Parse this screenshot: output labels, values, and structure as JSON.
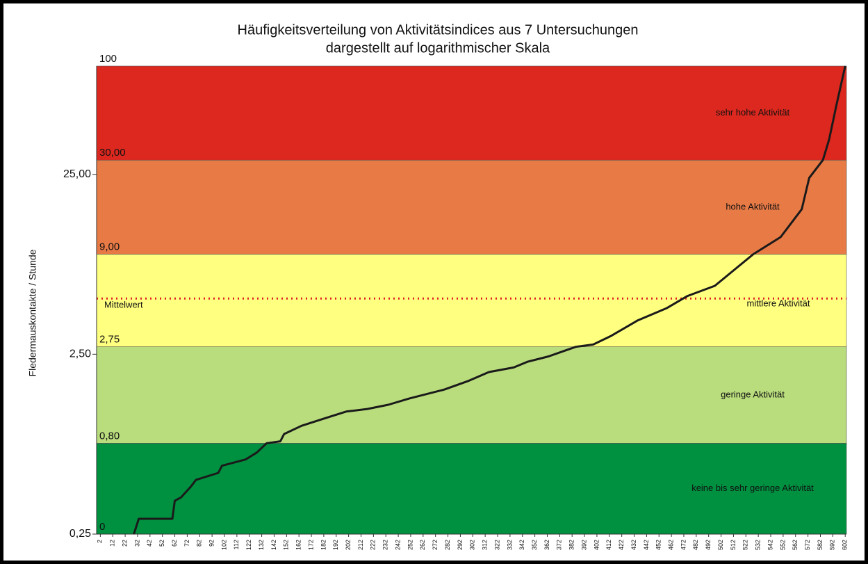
{
  "chart_data": {
    "type": "line",
    "title": "Häufigkeitsverteilung von Aktivitätsindices aus 7 Untersuchungen",
    "subtitle": "dargestellt auf logarithmischer Skala",
    "y_label": "Fledermauskontakte / Stunde",
    "log_y": true,
    "ylim": [
      0.25,
      100
    ],
    "yticks": [
      {
        "value": 0.25,
        "label": "0,25"
      },
      {
        "value": 2.5,
        "label": "2,50"
      },
      {
        "value": 25,
        "label": "25,00"
      }
    ],
    "xlim": [
      -1,
      603
    ],
    "xticks": [
      2,
      12,
      22,
      32,
      42,
      52,
      62,
      72,
      82,
      92,
      102,
      112,
      122,
      132,
      142,
      152,
      162,
      172,
      182,
      192,
      202,
      212,
      222,
      232,
      242,
      252,
      262,
      272,
      282,
      292,
      302,
      312,
      322,
      332,
      342,
      352,
      362,
      372,
      382,
      392,
      402,
      412,
      422,
      432,
      442,
      452,
      462,
      472,
      482,
      492,
      502,
      512,
      522,
      532,
      542,
      552,
      562,
      572,
      582,
      592,
      602
    ],
    "bands": [
      {
        "from": 0.25,
        "to": 0.8,
        "name": "keine bis sehr geringe Aktivität",
        "color": "#009140"
      },
      {
        "from": 0.8,
        "to": 2.75,
        "name": "geringe Aktivität",
        "color": "#b9dc7d"
      },
      {
        "from": 2.75,
        "to": 9,
        "name": "mittlere  Aktivität",
        "color": "#ffff80"
      },
      {
        "from": 9,
        "to": 30,
        "name": "hohe  Aktivität",
        "color": "#e87a46"
      },
      {
        "from": 30,
        "to": 100,
        "name": "sehr hohe  Aktivität",
        "color": "#dc281e"
      }
    ],
    "band_labels": [
      {
        "value": 0.25,
        "label": "0"
      },
      {
        "value": 0.8,
        "label": "0,80"
      },
      {
        "value": 2.75,
        "label": "2,75"
      },
      {
        "value": 9,
        "label": "9,00"
      },
      {
        "value": 30,
        "label": "30,00"
      },
      {
        "value": 100,
        "label": "100"
      }
    ],
    "mean": {
      "label": "Mittelwert",
      "value": 5.1,
      "color": "#e02020"
    },
    "series": [
      {
        "color": "#1a1a1a",
        "x": [
          29,
          33,
          60,
          62,
          67,
          75,
          79,
          97,
          100,
          119,
          128,
          136,
          147,
          150,
          164,
          181,
          200,
          217,
          234,
          251,
          279,
          298,
          315,
          335,
          346,
          363,
          385,
          399,
          413,
          435,
          458,
          475,
          497,
          514,
          528,
          550,
          567,
          573,
          584,
          589,
          595,
          602
        ],
        "values": [
          0.25,
          0.304,
          0.304,
          0.383,
          0.4,
          0.46,
          0.5,
          0.547,
          0.6,
          0.65,
          0.71,
          0.8,
          0.82,
          0.9,
          1.0,
          1.09,
          1.2,
          1.24,
          1.31,
          1.42,
          1.59,
          1.77,
          1.99,
          2.11,
          2.27,
          2.43,
          2.75,
          2.83,
          3.15,
          3.86,
          4.5,
          5.27,
          6.0,
          7.5,
          9.0,
          11.2,
          16,
          23.9,
          30,
          39,
          61,
          100
        ]
      }
    ]
  }
}
